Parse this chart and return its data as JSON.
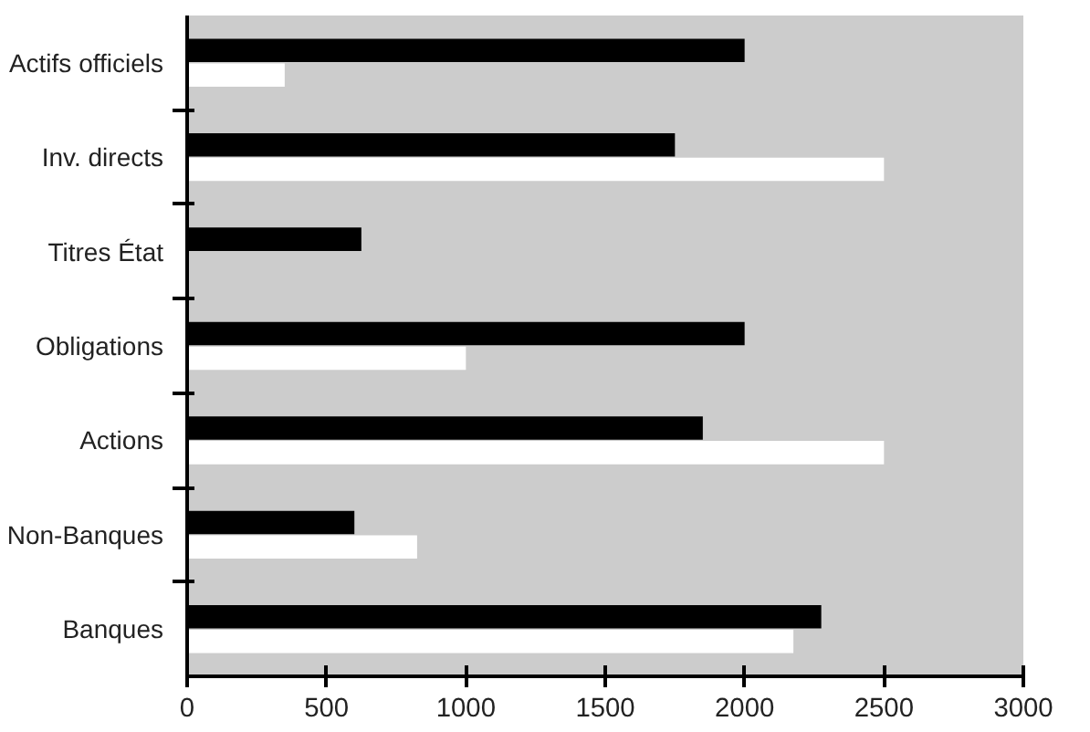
{
  "chart_data": {
    "type": "bar",
    "orientation": "horizontal",
    "categories": [
      "Actifs officiels",
      "Inv. directs",
      "Titres État",
      "Obligations",
      "Actions",
      "Non-Banques",
      "Banques"
    ],
    "series": [
      {
        "color": "#000000",
        "values": [
          2000,
          1750,
          625,
          2000,
          1850,
          600,
          2275
        ]
      },
      {
        "color": "#ffffff",
        "values": [
          350,
          2500,
          null,
          1000,
          2500,
          825,
          2175
        ]
      }
    ],
    "xlim": [
      0,
      3000
    ],
    "xticks": [
      0,
      500,
      1000,
      1500,
      2000,
      2500,
      3000
    ],
    "grid": false
  }
}
